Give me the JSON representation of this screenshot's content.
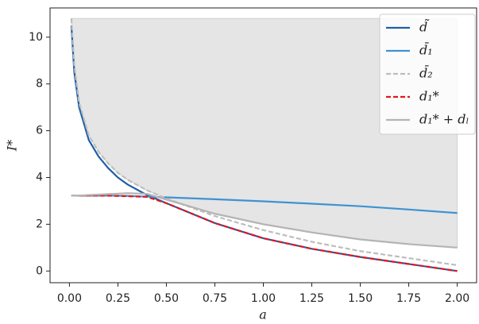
{
  "chart_data": {
    "type": "line",
    "x_label": "a",
    "y_label": "I*",
    "x": [
      0.01,
      0.025,
      0.05,
      0.1,
      0.15,
      0.2,
      0.25,
      0.3,
      0.4,
      0.5,
      0.75,
      1.0,
      1.25,
      1.5,
      1.75,
      2.0
    ],
    "shaded_region": {
      "upper": 10.8,
      "lower": [
        10.8,
        8.8,
        7.2,
        5.8,
        5.1,
        4.6,
        4.2,
        3.9,
        3.45,
        3.1,
        2.45,
        2.0,
        1.65,
        1.35,
        1.15,
        1.0
      ],
      "color": "#e5e5e5"
    },
    "series": [
      {
        "name": "d̃",
        "color": "#1f5fa8",
        "dash": false,
        "values": [
          10.5,
          8.5,
          7.0,
          5.6,
          4.9,
          4.4,
          4.0,
          3.7,
          3.25,
          2.9,
          2.05,
          1.4,
          0.95,
          0.6,
          0.3,
          0.0
        ]
      },
      {
        "name": "d̄₁",
        "color": "#3d93d2",
        "dash": false,
        "values": [
          3.22,
          3.22,
          3.22,
          3.22,
          3.22,
          3.22,
          3.22,
          3.21,
          3.18,
          3.15,
          3.07,
          2.98,
          2.88,
          2.77,
          2.63,
          2.48
        ]
      },
      {
        "name": "d̄₂",
        "color": "#bdbdbd",
        "dash": true,
        "values": [
          10.8,
          8.8,
          7.2,
          5.8,
          5.1,
          4.6,
          4.2,
          3.9,
          3.45,
          3.1,
          2.35,
          1.75,
          1.25,
          0.85,
          0.55,
          0.25
        ]
      },
      {
        "name": "d₁*",
        "color": "#e8141b",
        "dash": true,
        "values": [
          3.22,
          3.22,
          3.22,
          3.22,
          3.22,
          3.22,
          3.21,
          3.2,
          3.17,
          2.9,
          2.05,
          1.4,
          0.95,
          0.6,
          0.3,
          0.0
        ]
      },
      {
        "name": "d₁* + dₗ",
        "color": "#b4b4b4",
        "dash": false,
        "values": [
          3.22,
          3.22,
          3.23,
          3.25,
          3.27,
          3.29,
          3.31,
          3.33,
          3.3,
          3.05,
          2.45,
          2.0,
          1.65,
          1.35,
          1.15,
          1.0
        ]
      }
    ],
    "xlim": [
      -0.1,
      2.1
    ],
    "ylim": [
      -0.5,
      11.25
    ],
    "xticks": [
      {
        "value": 0,
        "label": "0.00"
      },
      {
        "value": 0.25,
        "label": "0.25"
      },
      {
        "value": 0.5,
        "label": "0.50"
      },
      {
        "value": 0.75,
        "label": "0.75"
      },
      {
        "value": 1,
        "label": "1.00"
      },
      {
        "value": 1.25,
        "label": "1.25"
      },
      {
        "value": 1.5,
        "label": "1.50"
      },
      {
        "value": 1.75,
        "label": "1.75"
      },
      {
        "value": 2,
        "label": "2.00"
      }
    ],
    "yticks": [
      0,
      2,
      4,
      6,
      8,
      10
    ],
    "legend": "upper right"
  }
}
